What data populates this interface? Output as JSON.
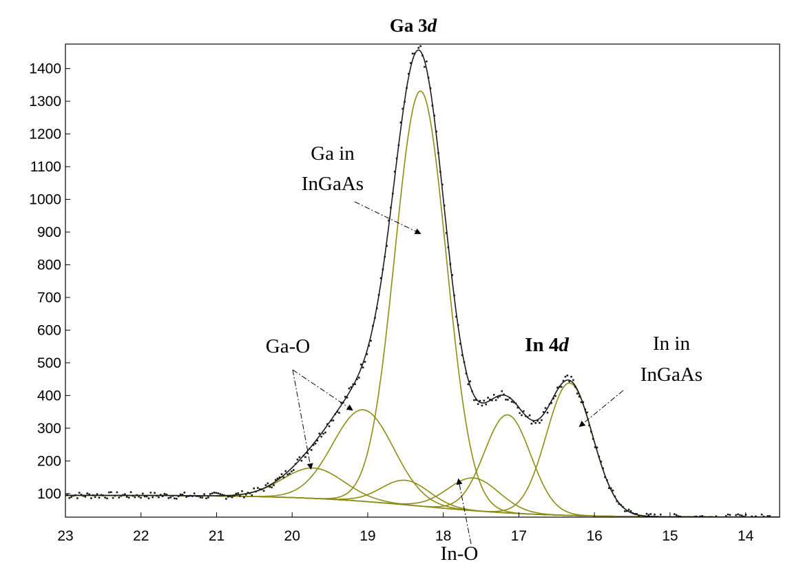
{
  "chart_data": {
    "type": "line",
    "title": "Ga 3",
    "title_italic": "d",
    "xlabel": "",
    "ylabel": "",
    "xlim": [
      23.0,
      13.55
    ],
    "ylim": [
      28,
      1475
    ],
    "x_reversed": true,
    "x_ticks": [
      "23",
      "22",
      "21",
      "20",
      "19",
      "18",
      "17",
      "16",
      "15",
      "14"
    ],
    "y_ticks": [
      "100",
      "200",
      "300",
      "400",
      "500",
      "600",
      "700",
      "800",
      "900",
      "1000",
      "1100",
      "1200",
      "1300",
      "1400"
    ],
    "grid": false,
    "legend": "none",
    "colors": {
      "envelope": "#1a1a1a",
      "components": "#8c8c14",
      "background": "#7a7a7a",
      "points": "#1a1a1a"
    },
    "background": {
      "left": [
        23.0,
        95
      ],
      "right": [
        13.55,
        28
      ],
      "shirley_step": [
        18.3,
        0.8
      ]
    },
    "components": [
      {
        "name": "Ga-O",
        "center": 19.72,
        "height": 93,
        "fwhm": 0.95
      },
      {
        "name": "Ga-O",
        "center": 19.06,
        "height": 280,
        "fwhm": 0.95
      },
      {
        "name": "Ga in InGaAs",
        "center": 18.3,
        "height": 1270,
        "fwhm": 0.8
      },
      {
        "name": "In-O",
        "center": 18.5,
        "height": 75,
        "fwhm": 0.75
      },
      {
        "name": "In-O",
        "center": 17.6,
        "height": 100,
        "fwhm": 0.8
      },
      {
        "name": "In in InGaAs",
        "center": 17.15,
        "height": 300,
        "fwhm": 0.72
      },
      {
        "name": "In in InGaAs",
        "center": 16.33,
        "height": 405,
        "fwhm": 0.72
      }
    ],
    "annotations": [
      {
        "id": "ga_ingaas",
        "lines": [
          "Ga in",
          "InGaAs"
        ],
        "arrow_to": [
          [
            18.3,
            895
          ]
        ]
      },
      {
        "id": "ga_o",
        "lines": [
          "Ga-O"
        ],
        "arrow_to": [
          [
            19.75,
            175
          ],
          [
            19.2,
            355
          ]
        ]
      },
      {
        "id": "in4d",
        "lines": [
          "In 4"
        ],
        "italic": "d"
      },
      {
        "id": "in_ingaas",
        "lines": [
          "In in",
          "InGaAs"
        ],
        "arrow_to": [
          [
            16.2,
            305
          ]
        ]
      },
      {
        "id": "in_o",
        "lines": [
          "In-O"
        ],
        "arrow_to": [
          [
            17.8,
            145
          ]
        ]
      }
    ]
  }
}
